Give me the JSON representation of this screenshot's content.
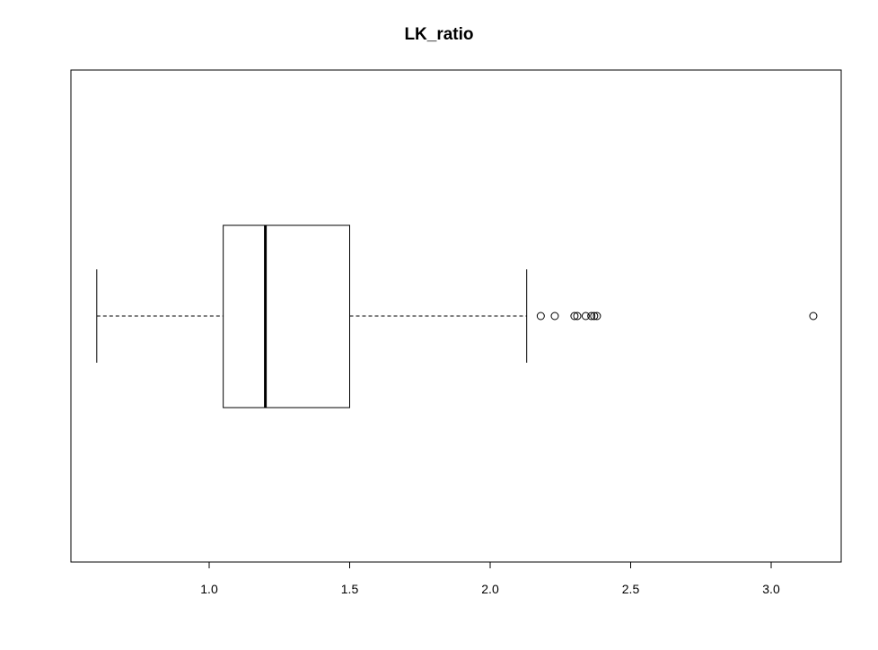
{
  "chart_data": {
    "type": "boxplot",
    "title": "LK_ratio",
    "orientation": "horizontal",
    "xlim": [
      0.5,
      3.25
    ],
    "x_ticks": [
      1.0,
      1.5,
      2.0,
      2.5,
      3.0
    ],
    "x_tick_labels": [
      "1.0",
      "1.5",
      "2.0",
      "2.5",
      "3.0"
    ],
    "whisker_low": 0.6,
    "q1": 1.05,
    "median": 1.2,
    "q3": 1.5,
    "whisker_high": 2.13,
    "outliers": [
      2.18,
      2.23,
      2.3,
      2.31,
      2.34,
      2.36,
      2.37,
      2.38,
      3.15
    ]
  }
}
